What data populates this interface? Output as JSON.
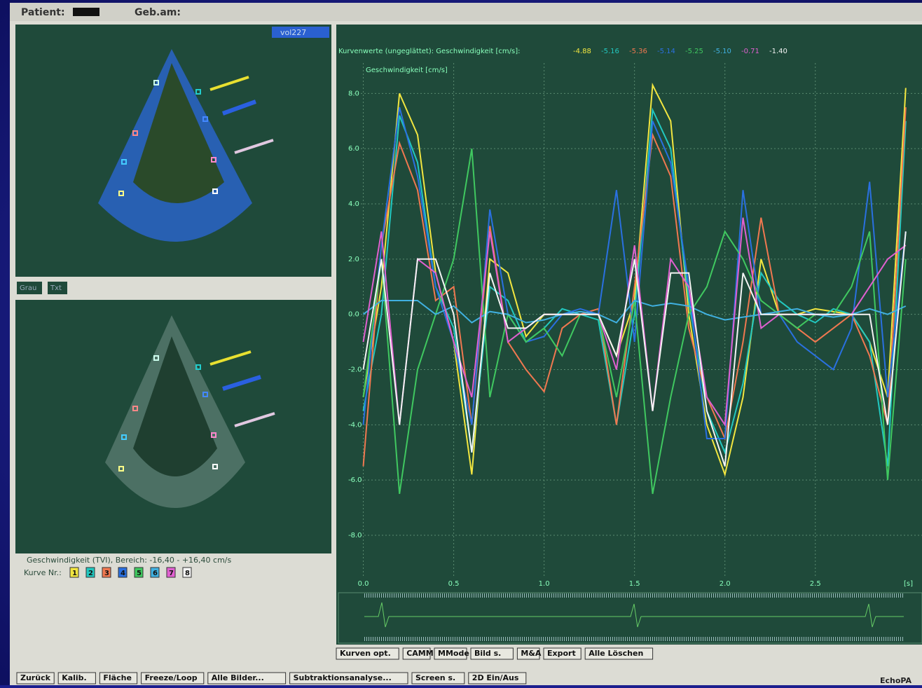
{
  "top_bar": {
    "patient_label": "Patient:",
    "birth_label": "Geb.am:"
  },
  "left_panel": {
    "image_label": "vol227",
    "buttons": [
      "Grau",
      "Txt"
    ],
    "caption": "Geschwindigkeit (TVI), Bereich: -16,40 - +16,40 cm/s",
    "curve_label": "Kurve Nr.:",
    "curve_numbers": [
      "1",
      "2",
      "3",
      "4",
      "5",
      "6",
      "7",
      "8"
    ]
  },
  "chart_data": {
    "type": "line",
    "title": "Kurvenwerte (ungeglättet): Geschwindigkeit [cm/s]:",
    "header_values": [
      "-4.88",
      "-5.16",
      "-5.36",
      "-5.14",
      "-5.25",
      "-5.10",
      "-0.71",
      "-1.40"
    ],
    "y_label": "Geschwindigkeit [cm/s]",
    "x_label": "[s]",
    "x": [
      0,
      0.1,
      0.2,
      0.3,
      0.4,
      0.5,
      0.6,
      0.7,
      0.8,
      0.9,
      1.0,
      1.1,
      1.2,
      1.3,
      1.4,
      1.5,
      1.6,
      1.7,
      1.8,
      1.9,
      2.0,
      2.1,
      2.2,
      2.3,
      2.4,
      2.5,
      2.6,
      2.7,
      2.8,
      2.9,
      3.0
    ],
    "series": [
      {
        "name": "1",
        "color": "#f2e640",
        "values": [
          -3,
          1,
          8.0,
          6.5,
          1.5,
          -1,
          -5.8,
          2,
          1.5,
          -0.8,
          0,
          0,
          0,
          0,
          -1.5,
          0.5,
          8.3,
          7,
          0,
          -4,
          -5.8,
          -3,
          2,
          0,
          0,
          0.2,
          0.1,
          0,
          -1,
          -3,
          8.2
        ]
      },
      {
        "name": "2",
        "color": "#22c8c0",
        "values": [
          -3.5,
          0,
          7.2,
          5.5,
          1,
          -0.5,
          -5,
          1,
          0.5,
          -1,
          -0.5,
          0.2,
          0,
          -0.2,
          -4,
          0,
          7.4,
          6,
          0.5,
          -3.5,
          -5,
          -2.5,
          1.5,
          0.5,
          0,
          -0.3,
          0.2,
          0,
          -1,
          -5.5,
          7
        ]
      },
      {
        "name": "3",
        "color": "#f07850",
        "values": [
          -5.5,
          2.5,
          6.2,
          4.5,
          0.5,
          1,
          -4,
          3.2,
          -1,
          -2,
          -2.8,
          -0.5,
          0,
          0.2,
          -4,
          1,
          6.5,
          5,
          -0.5,
          -3,
          -4.5,
          -1,
          3.5,
          0,
          -0.5,
          -1,
          -0.5,
          0,
          -1.5,
          -4,
          7.5
        ]
      },
      {
        "name": "4",
        "color": "#2a70e0",
        "values": [
          -4,
          2.5,
          7.5,
          5,
          1,
          -1,
          -4,
          3.8,
          0,
          -1,
          -0.8,
          0,
          0.2,
          0,
          4.5,
          -1,
          7,
          5.5,
          1,
          -4.5,
          -4.5,
          4.5,
          0,
          0,
          -1,
          -1.5,
          -2,
          -0.5,
          4.8,
          -3,
          3
        ]
      },
      {
        "name": "5",
        "color": "#40c860",
        "values": [
          -3,
          2,
          -6.5,
          -2,
          0,
          2,
          6,
          -3,
          0,
          -1,
          -0.5,
          -1.5,
          0,
          0,
          -3,
          0.5,
          -6.5,
          -3,
          0,
          1,
          3,
          2,
          0.5,
          0,
          -0.5,
          0,
          0,
          1,
          3,
          -6,
          2
        ]
      },
      {
        "name": "6",
        "color": "#40b0e0",
        "values": [
          0,
          0.5,
          0.5,
          0.5,
          0,
          0.3,
          -0.3,
          0.1,
          0,
          -0.3,
          -0.2,
          0,
          0.1,
          0,
          -0.3,
          0.5,
          0.3,
          0.4,
          0.3,
          0,
          -0.2,
          -0.1,
          0,
          0.1,
          0.2,
          0,
          -0.1,
          0,
          0.2,
          0,
          0.3
        ]
      },
      {
        "name": "7",
        "color": "#e060d0",
        "values": [
          -1,
          3,
          -4,
          2,
          1.5,
          -1,
          -3,
          3,
          -1,
          -0.5,
          0,
          0,
          0,
          0,
          -2,
          2.5,
          -3.5,
          2,
          1,
          -3,
          -4,
          3.5,
          -0.5,
          0,
          0,
          0,
          0,
          0,
          1,
          2,
          2.5
        ]
      },
      {
        "name": "8",
        "color": "#f4f4f4",
        "values": [
          -2,
          2,
          -4,
          2,
          2,
          0,
          -5,
          1.5,
          -0.5,
          -0.5,
          0,
          0,
          0,
          0,
          -1.5,
          2,
          -3.5,
          1.5,
          1.5,
          -3.5,
          -5.5,
          1.5,
          0,
          0,
          0,
          0,
          0,
          0,
          0,
          -4,
          3
        ]
      }
    ],
    "xlim": [
      -0.13,
      3.09
    ],
    "ylim": [
      -9.7,
      9.1
    ],
    "xticks": [
      {
        "value": 0,
        "label": "0.0"
      },
      0.5,
      {
        "value": 1,
        "label": "1.0"
      },
      1.5,
      {
        "value": 2,
        "label": "2.0"
      },
      2.5
    ],
    "yticks": [
      {
        "value": 8,
        "label": "8.0"
      },
      {
        "value": 6,
        "label": "6.0"
      },
      {
        "value": 4,
        "label": "4.0"
      },
      {
        "value": 2,
        "label": "2.0"
      },
      {
        "value": 0,
        "label": "0.0"
      },
      {
        "value": -2,
        "label": "-2.0"
      },
      {
        "value": -4,
        "label": "-4.0"
      },
      {
        "value": -6,
        "label": "-6.0"
      },
      {
        "value": -8,
        "label": "-8.0"
      }
    ],
    "grid": true
  },
  "chart_buttons": [
    "Kurven opt.",
    "CAMM",
    "MMode",
    "Bild s.",
    "M&A",
    "Export",
    "Alle Löschen"
  ],
  "bottom_buttons": [
    "Zurück",
    "Kalib.",
    "Fläche",
    "Freeze/Loop",
    "Alle Bilder...",
    "Subtraktionsanalyse...",
    "Screen s.",
    "2D Ein/Aus"
  ],
  "brand": "EchoPA"
}
